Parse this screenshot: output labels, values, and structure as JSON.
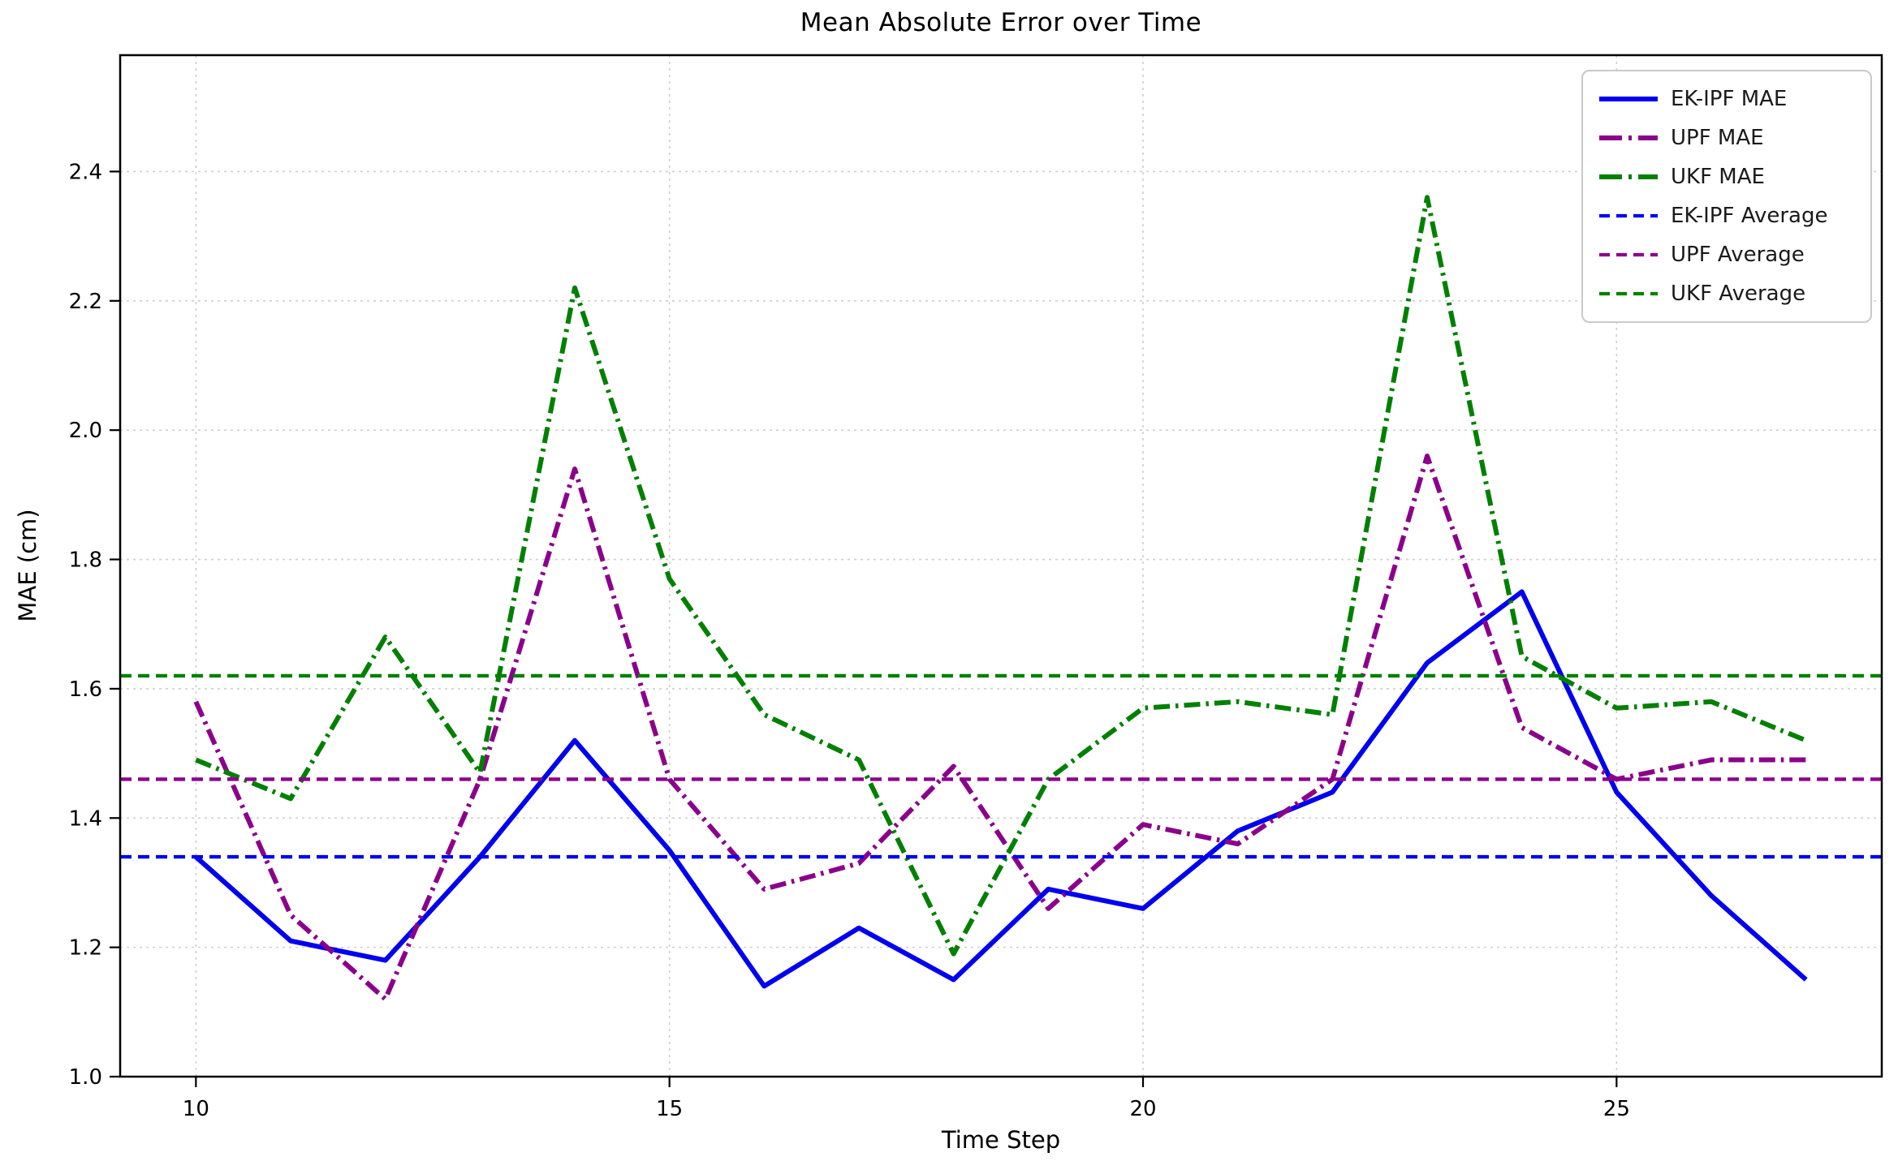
{
  "title": "Mean Absolute Error over Time",
  "chart_data": {
    "type": "line",
    "title": "Mean Absolute Error over Time",
    "xlabel": "Time Step",
    "ylabel": "MAE (cm)",
    "x": [
      10,
      11,
      12,
      13,
      14,
      15,
      16,
      17,
      18,
      19,
      20,
      21,
      22,
      23,
      24,
      25,
      26,
      27
    ],
    "series": [
      {
        "name": "EK-IPF MAE",
        "color": "#0000f0",
        "style": "solid",
        "values": [
          1.34,
          1.21,
          1.18,
          1.34,
          1.52,
          1.35,
          1.14,
          1.23,
          1.15,
          1.29,
          1.26,
          1.38,
          1.44,
          1.64,
          1.75,
          1.44,
          1.28,
          1.15
        ]
      },
      {
        "name": "UPF MAE",
        "color": "#8b008b",
        "style": "dashdot",
        "values": [
          1.58,
          1.25,
          1.12,
          1.46,
          1.94,
          1.46,
          1.29,
          1.33,
          1.48,
          1.26,
          1.39,
          1.36,
          1.46,
          1.96,
          1.54,
          1.46,
          1.49,
          1.49
        ]
      },
      {
        "name": "UKF MAE",
        "color": "#008000",
        "style": "dashdot",
        "values": [
          1.49,
          1.43,
          1.68,
          1.47,
          2.22,
          1.77,
          1.56,
          1.49,
          1.19,
          1.46,
          1.57,
          1.58,
          1.56,
          2.36,
          1.65,
          1.57,
          1.58,
          1.52
        ]
      }
    ],
    "averages": [
      {
        "name": "EK-IPF Average",
        "color": "#0000f0",
        "value": 1.34
      },
      {
        "name": "UPF Average",
        "color": "#8b008b",
        "value": 1.46
      },
      {
        "name": "UKF Average",
        "color": "#008000",
        "value": 1.62
      }
    ],
    "legend_labels": [
      "EK-IPF MAE",
      "UPF MAE",
      "UKF MAE",
      "EK-IPF Average",
      "UPF Average",
      "UKF Average"
    ],
    "legend_position": "upper right",
    "xticks": [
      10,
      15,
      20,
      25
    ],
    "yticks": [
      1.0,
      1.2,
      1.4,
      1.6,
      1.8,
      2.0,
      2.2,
      2.4
    ],
    "xlim": [
      9.2,
      27.8
    ],
    "ylim": [
      1.0,
      2.58
    ],
    "grid": true
  },
  "colors": {
    "grid": "#cfcfcf",
    "spine": "#000000",
    "tick_text": "#000000",
    "legend_border": "#c9c9c9",
    "background": "#ffffff"
  }
}
